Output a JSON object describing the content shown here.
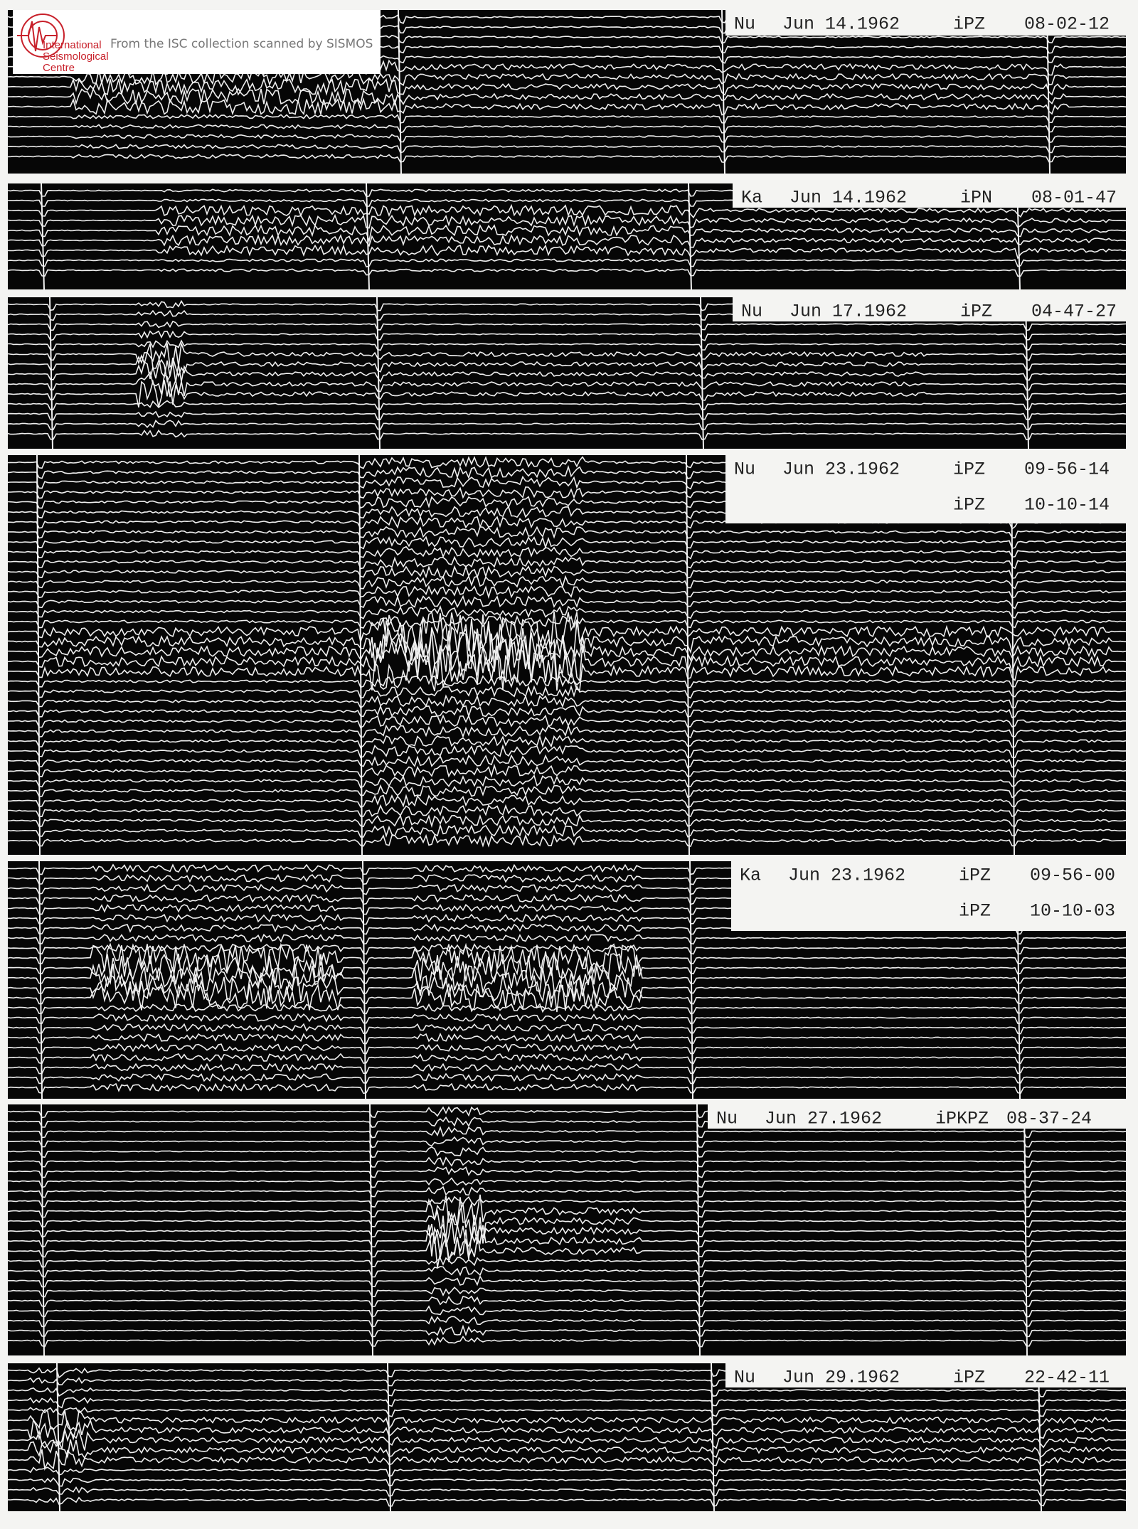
{
  "logo": {
    "line1": "International",
    "line2": "Seismological",
    "line3": "Centre",
    "caption": "From the ISC collection scanned by SISMOS"
  },
  "panels": [
    {
      "station": "Nu",
      "date": "Jun 14.1962",
      "readings": [
        {
          "phase": "iPZ",
          "time": "08-02-12"
        }
      ]
    },
    {
      "station": "Ka",
      "date": "Jun 14.1962",
      "readings": [
        {
          "phase": "iPN",
          "time": "08-01-47"
        }
      ]
    },
    {
      "station": "Nu",
      "date": "Jun 17.1962",
      "readings": [
        {
          "phase": "iPZ",
          "time": "04-47-27"
        }
      ]
    },
    {
      "station": "Nu",
      "date": "Jun 23.1962",
      "readings": [
        {
          "phase": "iPZ",
          "time": "09-56-14"
        },
        {
          "phase": "iPZ",
          "time": "10-10-14"
        }
      ]
    },
    {
      "station": "Ka",
      "date": "Jun 23.1962",
      "readings": [
        {
          "phase": "iPZ",
          "time": "09-56-00"
        },
        {
          "phase": "iPZ",
          "time": "10-10-03"
        }
      ]
    },
    {
      "station": "Nu",
      "date": "Jun 27.1962",
      "readings": [
        {
          "phase": "iPKPZ",
          "time": "08-37-24"
        }
      ]
    },
    {
      "station": "Nu",
      "date": "Jun 29.1962",
      "readings": [
        {
          "phase": "iPZ",
          "time": "22-42-11"
        }
      ]
    }
  ]
}
